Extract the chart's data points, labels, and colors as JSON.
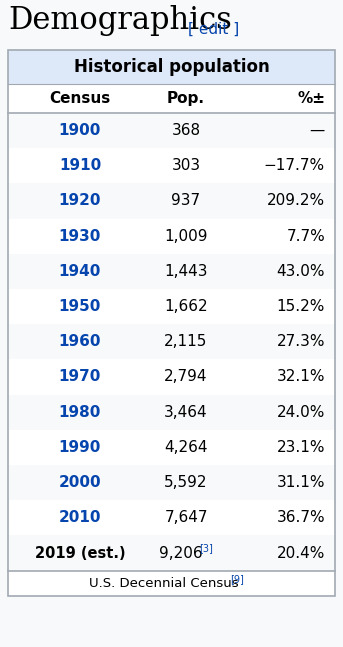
{
  "title": "Demographics",
  "edit_text": "[ edit ]",
  "table_header": "Historical population",
  "col_headers": [
    "Census",
    "Pop.",
    "%±"
  ],
  "rows": [
    [
      "1900",
      "368",
      "—"
    ],
    [
      "1910",
      "303",
      "−17.7%"
    ],
    [
      "1920",
      "937",
      "209.2%"
    ],
    [
      "1930",
      "1,009",
      "7.7%"
    ],
    [
      "1940",
      "1,443",
      "43.0%"
    ],
    [
      "1950",
      "1,662",
      "15.2%"
    ],
    [
      "1960",
      "2,115",
      "27.3%"
    ],
    [
      "1970",
      "2,794",
      "32.1%"
    ],
    [
      "1980",
      "3,464",
      "24.0%"
    ],
    [
      "1990",
      "4,264",
      "23.1%"
    ],
    [
      "2000",
      "5,592",
      "31.1%"
    ],
    [
      "2010",
      "7,647",
      "36.7%"
    ],
    [
      "2019 (est.)",
      "9,206[3]",
      "20.4%"
    ]
  ],
  "footer": "U.S. Decennial Census[9]",
  "bg_color": "#f8f9fa",
  "header_stripe": "#dde8f8",
  "col_header_bg": "#ffffff",
  "year_color": "#0645ad",
  "text_color": "#000000",
  "edit_color": "#0645ad",
  "outer_border_color": "#a2a9b1",
  "inner_line_color": "#a2a9b1",
  "row_even_bg": "#f8f9fa",
  "row_odd_bg": "#ffffff"
}
